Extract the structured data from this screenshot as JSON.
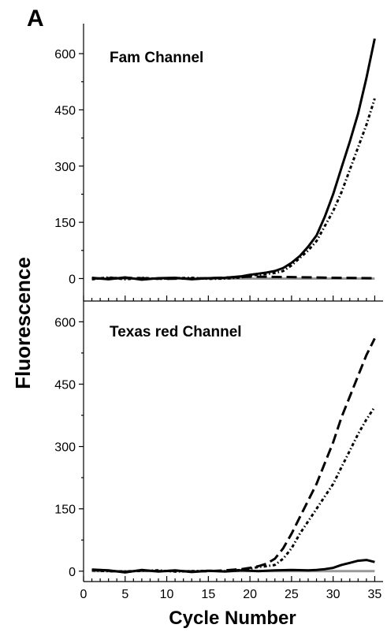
{
  "panel_label": "A",
  "chart_data": [
    {
      "type": "line",
      "title": "Fam Channel",
      "xlabel": "Cycle Number",
      "ylabel": "Fluorescence",
      "xlim": [
        0,
        36
      ],
      "ylim": [
        -60,
        680
      ],
      "xticks": [
        0,
        5,
        10,
        15,
        20,
        25,
        30,
        35
      ],
      "yticks": [
        0,
        150,
        300,
        450,
        600
      ],
      "grid": false,
      "series": [
        {
          "style": "baseline",
          "color": "#999999",
          "x": [
            1,
            35
          ],
          "y": [
            0,
            0
          ]
        },
        {
          "style": "solid",
          "color": "#000000",
          "x": [
            1,
            3,
            5,
            7,
            9,
            11,
            13,
            15,
            17,
            19,
            20,
            21,
            22,
            23,
            24,
            25,
            26,
            27,
            28,
            29,
            30,
            31,
            32,
            33,
            34,
            35
          ],
          "y": [
            2,
            -2,
            3,
            -3,
            1,
            2,
            -2,
            1,
            2,
            6,
            10,
            13,
            16,
            20,
            28,
            42,
            60,
            85,
            115,
            165,
            225,
            295,
            365,
            440,
            535,
            640
          ]
        },
        {
          "style": "dot-dash",
          "color": "#000000",
          "x": [
            1,
            3,
            5,
            7,
            9,
            11,
            13,
            15,
            17,
            19,
            20,
            21,
            22,
            23,
            24,
            25,
            26,
            27,
            28,
            29,
            30,
            31,
            32,
            33,
            34,
            35
          ],
          "y": [
            -2,
            3,
            -2,
            2,
            -1,
            1,
            2,
            -1,
            0,
            3,
            8,
            10,
            12,
            15,
            20,
            35,
            55,
            75,
            100,
            140,
            180,
            230,
            290,
            350,
            410,
            480
          ]
        },
        {
          "style": "dashed",
          "color": "#000000",
          "x": [
            1,
            5,
            10,
            15,
            20,
            25,
            30,
            35
          ],
          "y": [
            0,
            2,
            -1,
            1,
            5,
            4,
            2,
            1
          ]
        }
      ]
    },
    {
      "type": "line",
      "title": "Texas red Channel",
      "xlabel": "Cycle Number",
      "ylabel": "Fluorescence",
      "xlim": [
        0,
        36
      ],
      "ylim": [
        -25,
        650
      ],
      "xticks": [
        0,
        5,
        10,
        15,
        20,
        25,
        30,
        35
      ],
      "yticks": [
        0,
        150,
        300,
        450,
        600
      ],
      "grid": false,
      "series": [
        {
          "style": "baseline",
          "color": "#999999",
          "x": [
            1,
            35
          ],
          "y": [
            0,
            0
          ]
        },
        {
          "style": "dashed",
          "color": "#000000",
          "x": [
            1,
            3,
            5,
            7,
            9,
            11,
            13,
            15,
            17,
            19,
            20,
            21,
            22,
            23,
            24,
            25,
            26,
            27,
            28,
            29,
            30,
            31,
            32,
            33,
            34,
            35
          ],
          "y": [
            3,
            1,
            -2,
            2,
            0,
            1,
            -1,
            0,
            2,
            5,
            8,
            12,
            18,
            30,
            55,
            90,
            130,
            170,
            210,
            260,
            310,
            370,
            420,
            470,
            520,
            560
          ]
        },
        {
          "style": "dot-dash",
          "color": "#000000",
          "x": [
            1,
            3,
            5,
            7,
            9,
            11,
            13,
            15,
            17,
            19,
            20,
            21,
            22,
            23,
            24,
            25,
            26,
            27,
            28,
            29,
            30,
            31,
            32,
            33,
            34,
            35
          ],
          "y": [
            2,
            0,
            -1,
            1,
            2,
            -1,
            0,
            1,
            0,
            3,
            6,
            10,
            12,
            15,
            30,
            55,
            90,
            120,
            150,
            180,
            210,
            250,
            290,
            330,
            365,
            395
          ]
        },
        {
          "style": "solid",
          "color": "#000000",
          "x": [
            1,
            3,
            5,
            7,
            9,
            11,
            13,
            15,
            17,
            19,
            21,
            23,
            25,
            27,
            28,
            29,
            30,
            31,
            32,
            33,
            34,
            35
          ],
          "y": [
            4,
            2,
            -3,
            3,
            -1,
            2,
            -2,
            1,
            -1,
            2,
            0,
            2,
            3,
            2,
            3,
            5,
            8,
            15,
            20,
            25,
            27,
            22
          ]
        }
      ]
    }
  ]
}
